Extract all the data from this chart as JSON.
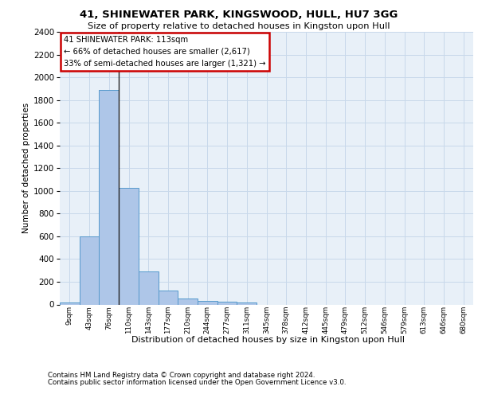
{
  "title1": "41, SHINEWATER PARK, KINGSWOOD, HULL, HU7 3GG",
  "title2": "Size of property relative to detached houses in Kingston upon Hull",
  "xlabel": "Distribution of detached houses by size in Kingston upon Hull",
  "ylabel": "Number of detached properties",
  "footer1": "Contains HM Land Registry data © Crown copyright and database right 2024.",
  "footer2": "Contains public sector information licensed under the Open Government Licence v3.0.",
  "annotation_line1": "41 SHINEWATER PARK: 113sqm",
  "annotation_line2": "← 66% of detached houses are smaller (2,617)",
  "annotation_line3": "33% of semi-detached houses are larger (1,321) →",
  "bar_categories": [
    "9sqm",
    "43sqm",
    "76sqm",
    "110sqm",
    "143sqm",
    "177sqm",
    "210sqm",
    "244sqm",
    "277sqm",
    "311sqm",
    "345sqm",
    "378sqm",
    "412sqm",
    "445sqm",
    "479sqm",
    "512sqm",
    "546sqm",
    "579sqm",
    "613sqm",
    "646sqm",
    "680sqm"
  ],
  "bar_values": [
    20,
    600,
    1890,
    1030,
    290,
    120,
    50,
    35,
    25,
    20,
    0,
    0,
    0,
    0,
    0,
    0,
    0,
    0,
    0,
    0,
    0
  ],
  "bar_color": "#aec6e8",
  "bar_edge_color": "#5599cc",
  "vline_x": 2.5,
  "vline_color": "#222222",
  "ylim": [
    0,
    2400
  ],
  "yticks": [
    0,
    200,
    400,
    600,
    800,
    1000,
    1200,
    1400,
    1600,
    1800,
    2000,
    2200,
    2400
  ],
  "grid_color": "#c8d8ea",
  "background_color": "#e8f0f8",
  "box_edge_color": "#cc0000",
  "fig_bg": "#ffffff",
  "title1_fontsize": 9.5,
  "title2_fontsize": 8.2,
  "ylabel_fontsize": 7.5,
  "xtick_fontsize": 6.3,
  "ytick_fontsize": 7.5,
  "xlabel_fontsize": 8.0,
  "footer_fontsize": 6.2,
  "annot_fontsize": 7.2
}
